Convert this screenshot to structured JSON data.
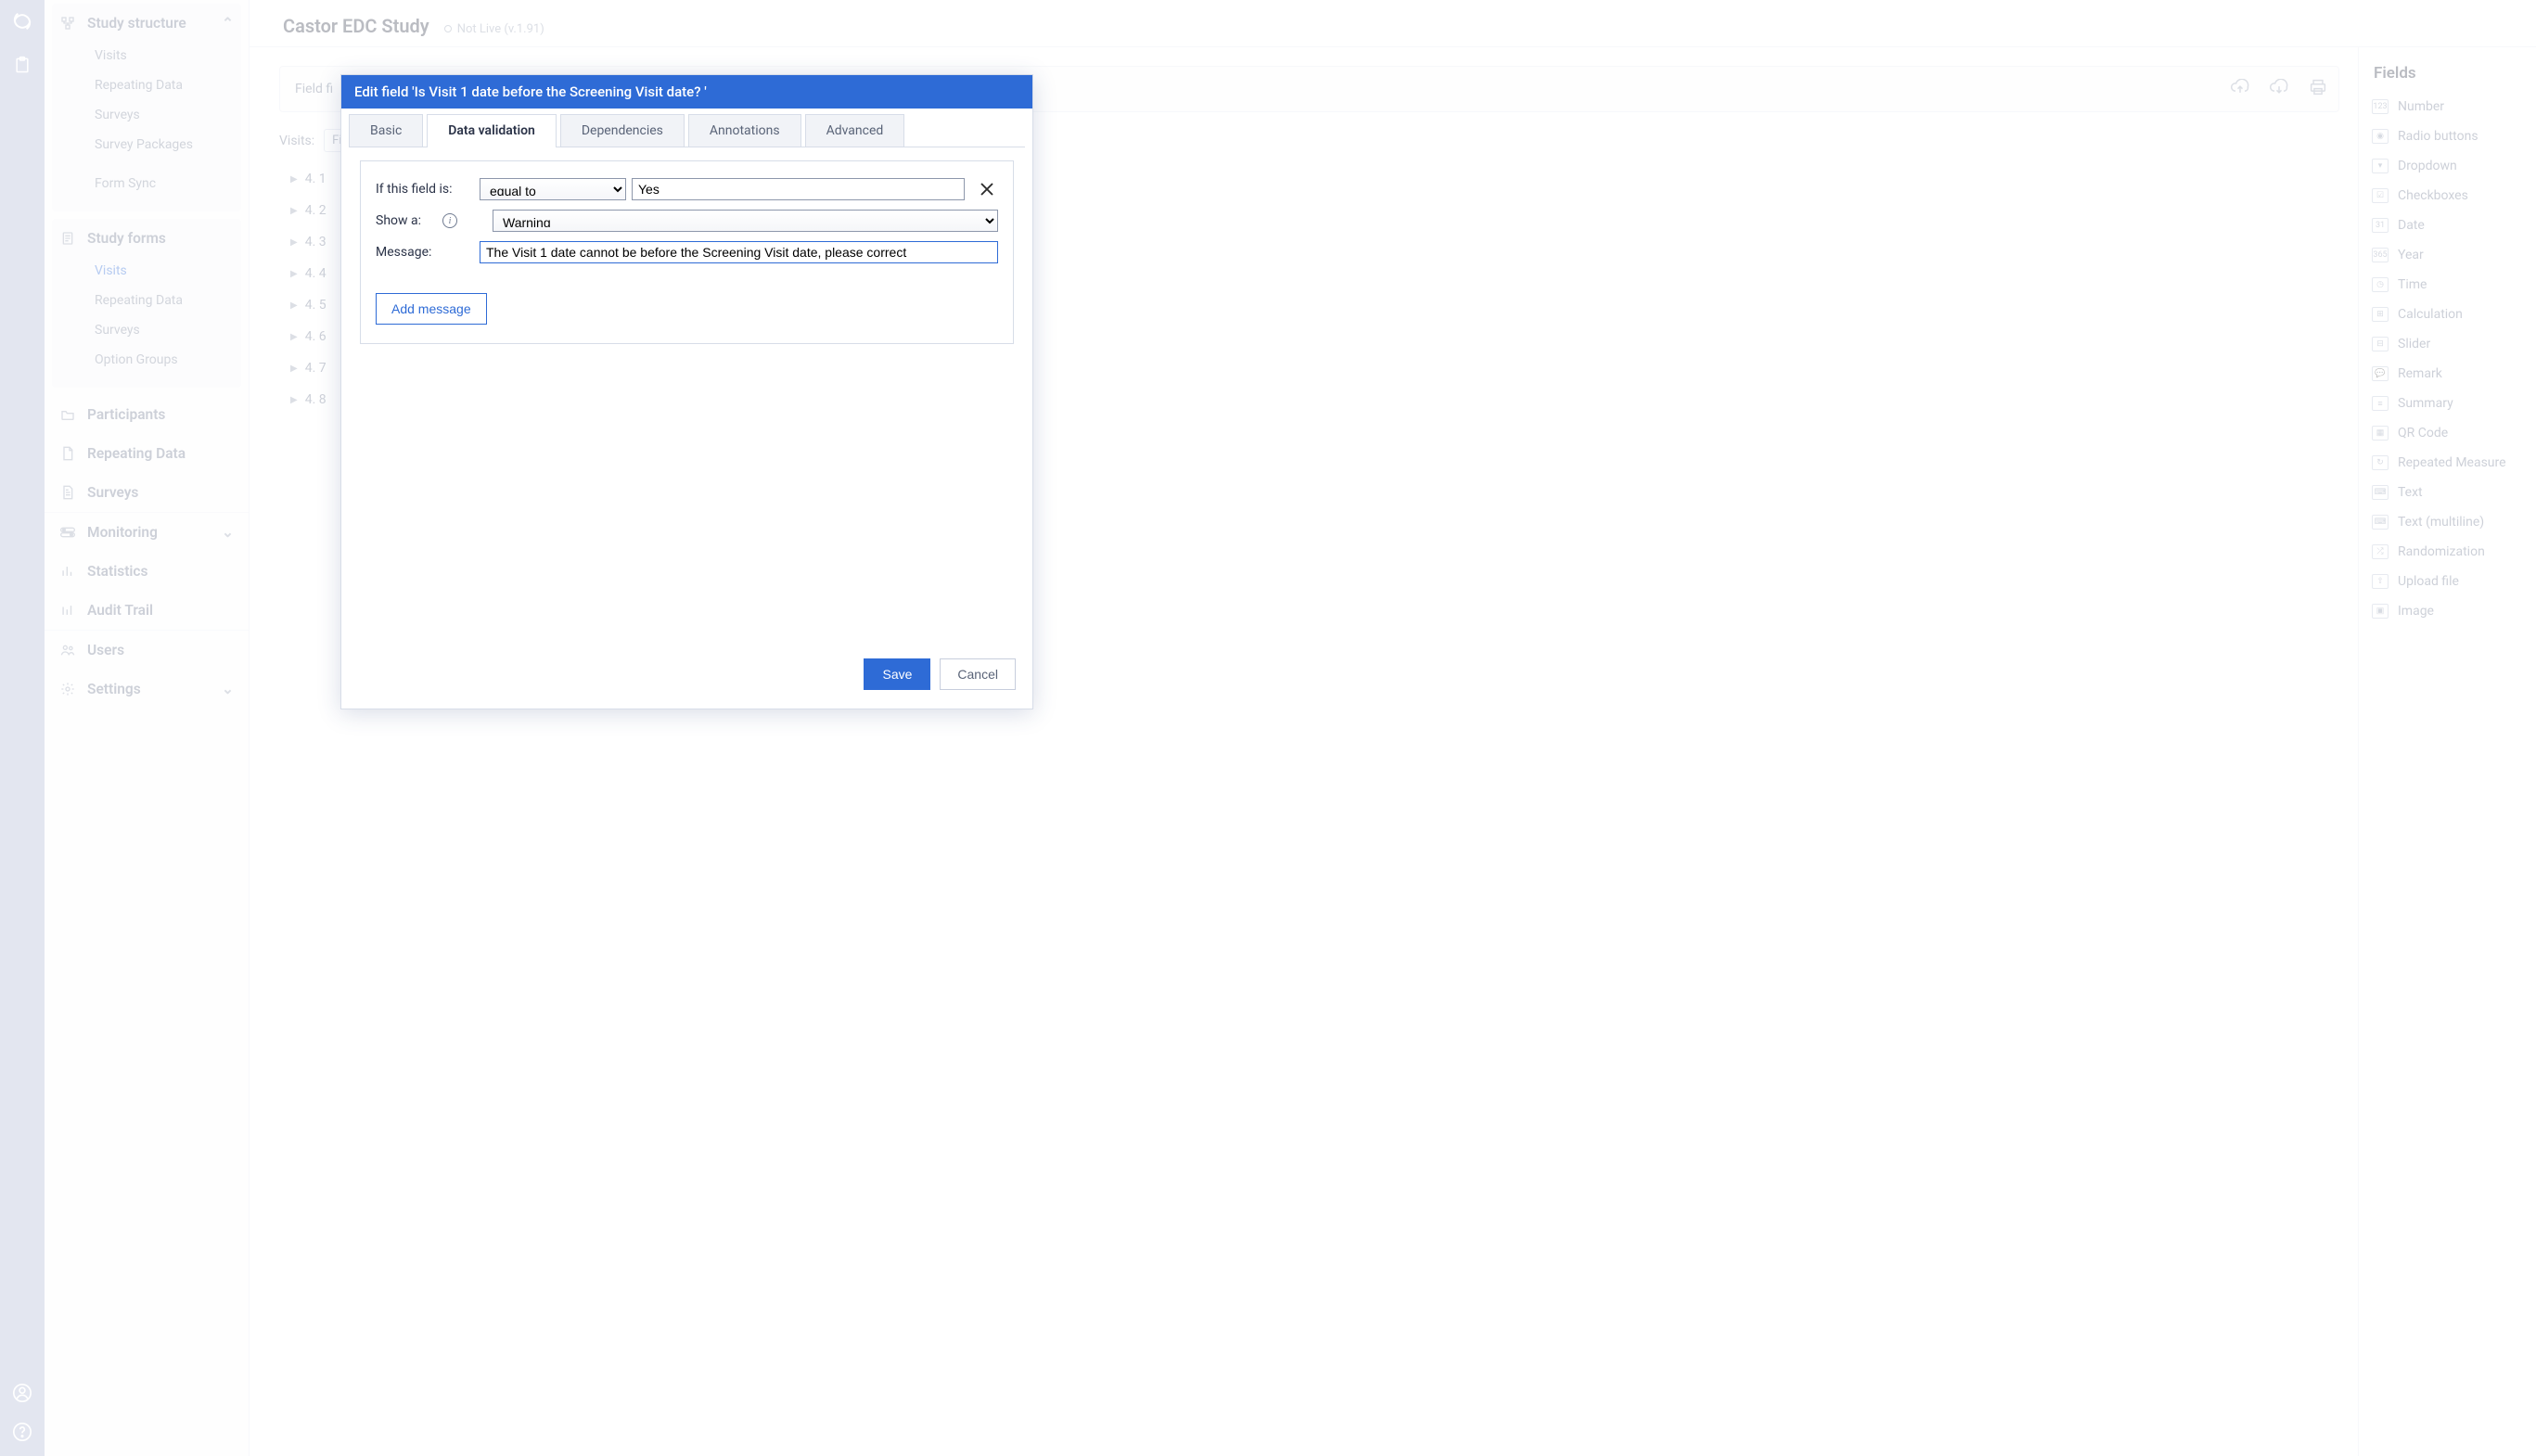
{
  "header": {
    "study_title": "Castor EDC Study",
    "status_label": "Not Live (v.1.91)"
  },
  "sidebar": {
    "structure": {
      "label": "Study structure",
      "items": [
        {
          "label": "Visits"
        },
        {
          "label": "Repeating Data"
        },
        {
          "label": "Surveys"
        },
        {
          "label": "Survey Packages"
        },
        {
          "label": "Form Sync"
        }
      ]
    },
    "forms": {
      "label": "Study forms",
      "items": [
        {
          "label": "Visits",
          "active": true
        },
        {
          "label": "Repeating Data"
        },
        {
          "label": "Surveys"
        },
        {
          "label": "Option Groups"
        }
      ]
    },
    "nav": [
      {
        "label": "Participants",
        "icon": "folder"
      },
      {
        "label": "Repeating Data",
        "icon": "doc"
      },
      {
        "label": "Surveys",
        "icon": "doc"
      }
    ],
    "bottom": [
      {
        "label": "Monitoring",
        "icon": "toggle",
        "chevron": true
      },
      {
        "label": "Statistics",
        "icon": "bar"
      },
      {
        "label": "Audit Trail",
        "icon": "bar"
      }
    ],
    "footer": [
      {
        "label": "Users",
        "icon": "users"
      },
      {
        "label": "Settings",
        "icon": "gear",
        "chevron": true
      }
    ]
  },
  "toolbar": {
    "field_label_prefix": "Field fi"
  },
  "visits": {
    "label": "Visits:",
    "selected": "Fir"
  },
  "tree": {
    "items": [
      "4. 1",
      "4. 2",
      "4. 3",
      "4. 4",
      "4. 5",
      "4. 6",
      "4. 7",
      "4. 8"
    ]
  },
  "fields_panel": {
    "title": "Fields",
    "types": [
      {
        "label": "Number",
        "glyph": "123"
      },
      {
        "label": "Radio buttons",
        "glyph": "◉"
      },
      {
        "label": "Dropdown",
        "glyph": "▾"
      },
      {
        "label": "Checkboxes",
        "glyph": "☑"
      },
      {
        "label": "Date",
        "glyph": "31"
      },
      {
        "label": "Year",
        "glyph": "365"
      },
      {
        "label": "Time",
        "glyph": "◷"
      },
      {
        "label": "Calculation",
        "glyph": "⊞"
      },
      {
        "label": "Slider",
        "glyph": "⊟"
      },
      {
        "label": "Remark",
        "glyph": "💬"
      },
      {
        "label": "Summary",
        "glyph": "≡"
      },
      {
        "label": "QR Code",
        "glyph": "▦"
      },
      {
        "label": "Repeated Measure",
        "glyph": "↻"
      },
      {
        "label": "Text",
        "glyph": "⌨"
      },
      {
        "label": "Text (multiline)",
        "glyph": "⌨"
      },
      {
        "label": "Randomization",
        "glyph": "⤮"
      },
      {
        "label": "Upload file",
        "glyph": "⇧"
      },
      {
        "label": "Image",
        "glyph": "▣"
      }
    ]
  },
  "modal": {
    "title": "Edit field 'Is Visit 1 date before the Screening Visit date? '",
    "tabs": [
      "Basic",
      "Data validation",
      "Dependencies",
      "Annotations",
      "Advanced"
    ],
    "active_tab": 1,
    "form": {
      "if_label": "If this field is:",
      "condition": "equal to",
      "value": "Yes",
      "show_label": "Show a:",
      "show_value": "Warning",
      "message_label": "Message:",
      "message_value": "The Visit 1 date cannot be before the Screening Visit date, please correct",
      "add_message": "Add message"
    },
    "buttons": {
      "save": "Save",
      "cancel": "Cancel"
    }
  },
  "colors": {
    "primary": "#2e6bd6",
    "rail": "#aeb7d4",
    "muted_text": "#6f7a90",
    "border": "#d7dde8"
  }
}
